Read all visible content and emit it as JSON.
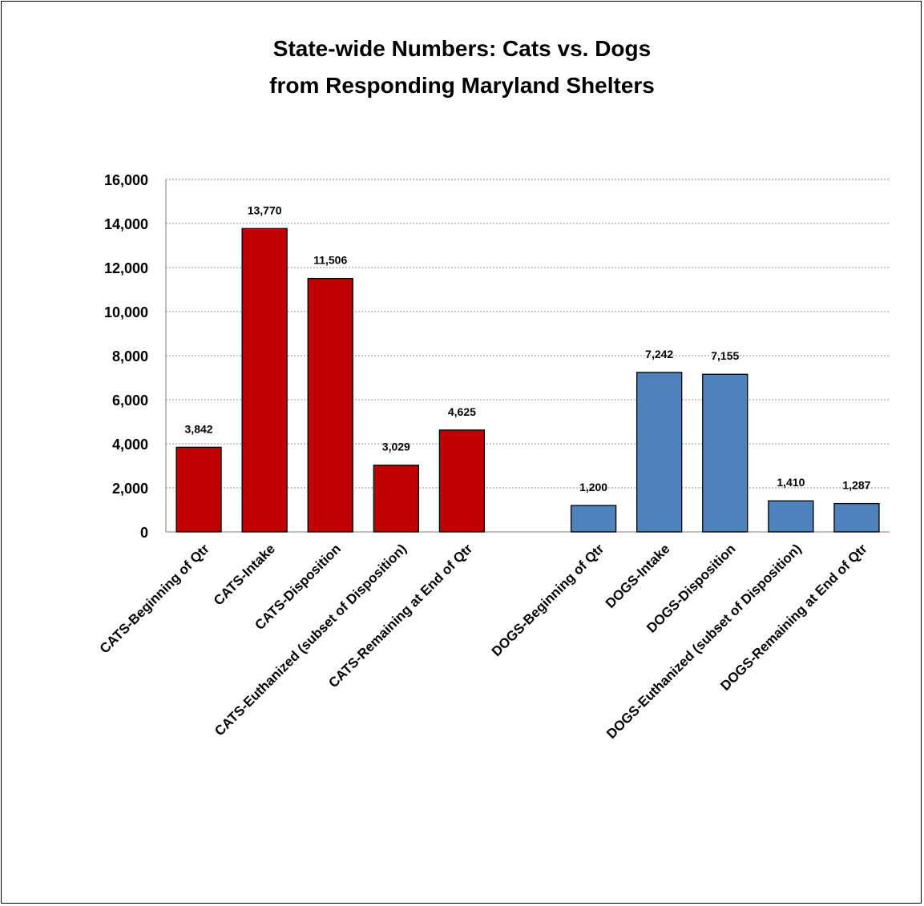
{
  "chart_data": {
    "type": "bar",
    "title_lines": [
      "State-wide Numbers: Cats vs. Dogs",
      "from Responding  Maryland Shelters"
    ],
    "xlabel": "",
    "ylabel": "",
    "ylim": [
      0,
      16000
    ],
    "yticks": [
      "0",
      "2,000",
      "4,000",
      "6,000",
      "8,000",
      "10,000",
      "12,000",
      "14,000",
      "16,000"
    ],
    "grid": "horizontal dotted",
    "legend": "none",
    "colors": {
      "cats": "#c00000",
      "dogs": "#4f81bd"
    },
    "bars": [
      {
        "category": "CATS-Beginning of Qtr",
        "value": 3842,
        "label": "3,842",
        "group": "cats"
      },
      {
        "category": "CATS-Intake",
        "value": 13770,
        "label": "13,770",
        "group": "cats"
      },
      {
        "category": "CATS-Disposition",
        "value": 11506,
        "label": "11,506",
        "group": "cats"
      },
      {
        "category": "CATS-Euthanized (subset of Disposition)",
        "value": 3029,
        "label": "3,029",
        "group": "cats"
      },
      {
        "category": "CATS-Remaining at End of Qtr",
        "value": 4625,
        "label": "4,625",
        "group": "cats"
      },
      {
        "category": "",
        "value": null,
        "label": "",
        "group": "gap"
      },
      {
        "category": "DOGS-Beginning of Qtr",
        "value": 1200,
        "label": "1,200",
        "group": "dogs"
      },
      {
        "category": "DOGS-Intake",
        "value": 7242,
        "label": "7,242",
        "group": "dogs"
      },
      {
        "category": "DOGS-Disposition",
        "value": 7155,
        "label": "7,155",
        "group": "dogs"
      },
      {
        "category": "DOGS-Euthanized (subset of Disposition)",
        "value": 1410,
        "label": "1,410",
        "group": "dogs"
      },
      {
        "category": "DOGS-Remaining at End of Qtr",
        "value": 1287,
        "label": "1,287",
        "group": "dogs"
      }
    ]
  }
}
